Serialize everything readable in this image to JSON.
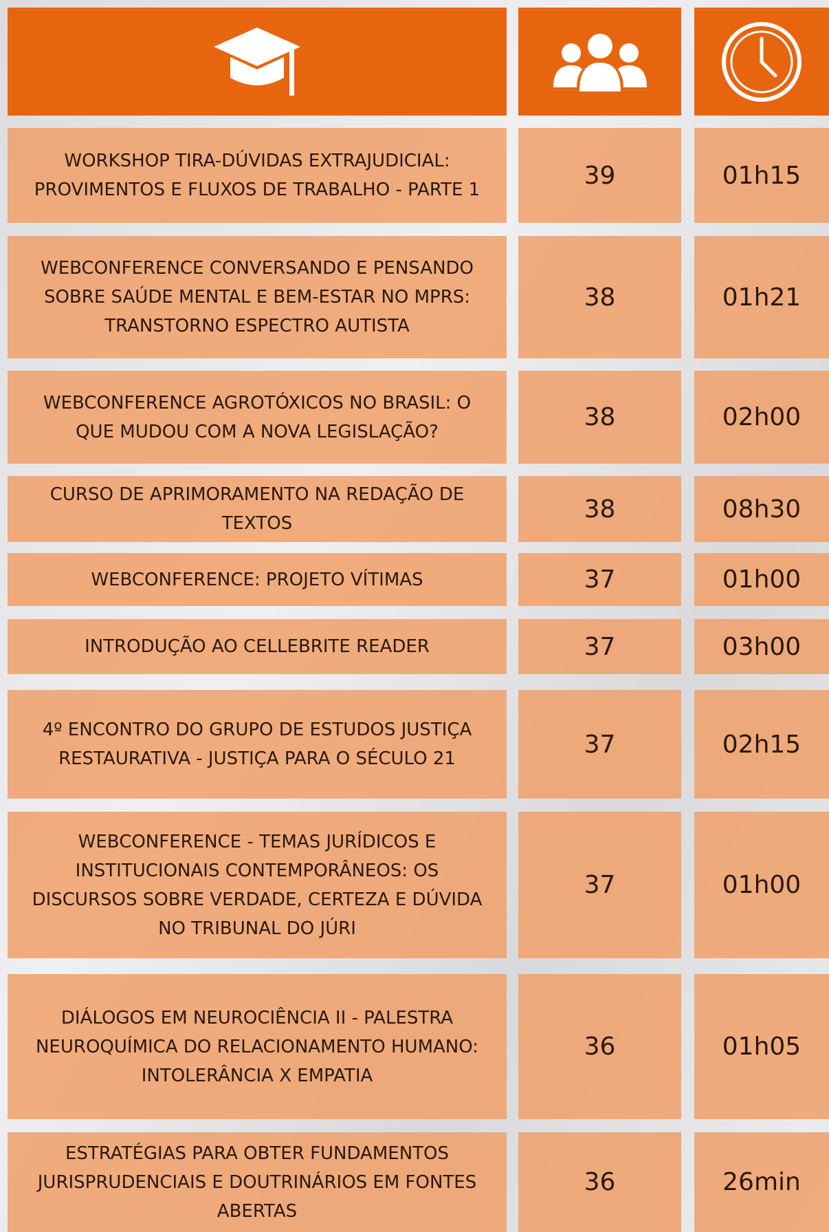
{
  "table": {
    "rows": [
      {
        "title": "WORKSHOP TIRA-DÚVIDAS EXTRAJUDICIAL: PROVIMENTOS E FLUXOS DE TRABALHO - PARTE 1",
        "participants": "39",
        "duration": "01h15"
      },
      {
        "title": "WEBCONFERENCE CONVERSANDO E PENSANDO SOBRE SAÚDE MENTAL E BEM-ESTAR NO MPRS: TRANSTORNO ESPECTRO AUTISTA",
        "participants": "38",
        "duration": "01h21"
      },
      {
        "title": "WEBCONFERENCE AGROTÓXICOS NO BRASIL: O QUE MUDOU COM A NOVA LEGISLAÇÃO?",
        "participants": "38",
        "duration": "02h00"
      },
      {
        "title": "CURSO DE APRIMORAMENTO NA REDAÇÃO DE TEXTOS",
        "participants": "38",
        "duration": "08h30"
      },
      {
        "title": "WEBCONFERENCE: PROJETO VÍTIMAS",
        "participants": "37",
        "duration": "01h00"
      },
      {
        "title": "INTRODUÇÃO AO CELLEBRITE READER",
        "participants": "37",
        "duration": "03h00"
      },
      {
        "title": "4º ENCONTRO DO GRUPO DE ESTUDOS JUSTIÇA RESTAURATIVA - JUSTIÇA PARA O SÉCULO 21",
        "participants": "37",
        "duration": "02h15"
      },
      {
        "title": "WEBCONFERENCE - TEMAS JURÍDICOS E INSTITUCIONAIS CONTEMPORÂNEOS: OS DISCURSOS SOBRE VERDADE, CERTEZA E DÚVIDA NO TRIBUNAL DO JÚRI",
        "participants": "37",
        "duration": "01h00"
      },
      {
        "title": "DIÁLOGOS EM NEUROCIÊNCIA II - PALESTRA NEUROQUÍMICA DO RELACIONAMENTO HUMANO: INTOLERÂNCIA X EMPATIA",
        "participants": "36",
        "duration": "01h05"
      },
      {
        "title": "ESTRATÉGIAS PARA OBTER FUNDAMENTOS JURISPRUDENCIAIS E DOUTRINÁRIOS EM FONTES ABERTAS",
        "participants": "36",
        "duration": "26min"
      }
    ]
  }
}
